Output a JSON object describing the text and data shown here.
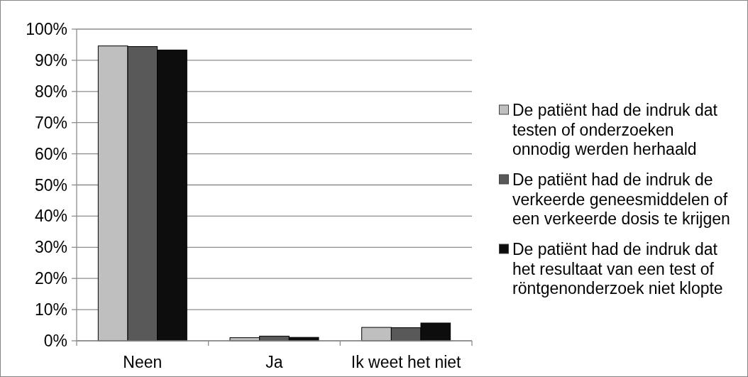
{
  "chart_data": {
    "type": "bar",
    "categories": [
      "Neen",
      "Ja",
      "Ik weet het niet"
    ],
    "series": [
      {
        "name": "De patiënt had de indruk dat testen of onderzoeken onnodig werden herhaald",
        "color": "#bfbfbf",
        "values": [
          94.6,
          1.0,
          4.3
        ]
      },
      {
        "name": "De patiënt had de indruk de verkeerde geneesmiddelen of een verkeerde dosis te krijgen",
        "color": "#595959",
        "values": [
          94.4,
          1.5,
          4.2
        ]
      },
      {
        "name": "De patiënt had de indruk dat het resultaat van een test of röntgenonderzoek niet klopte",
        "color": "#0d0d0d",
        "values": [
          93.3,
          1.1,
          5.7
        ]
      }
    ],
    "ylim": [
      0,
      100
    ],
    "yticks": [
      {
        "value": 0,
        "label": "0%"
      },
      {
        "value": 10,
        "label": "10%"
      },
      {
        "value": 20,
        "label": "20%"
      },
      {
        "value": 30,
        "label": "30%"
      },
      {
        "value": 40,
        "label": "40%"
      },
      {
        "value": 50,
        "label": "50%"
      },
      {
        "value": 60,
        "label": "60%"
      },
      {
        "value": 70,
        "label": "70%"
      },
      {
        "value": 80,
        "label": "80%"
      },
      {
        "value": 90,
        "label": "90%"
      },
      {
        "value": 100,
        "label": "100%"
      }
    ],
    "grid": "y",
    "legend": "right"
  }
}
